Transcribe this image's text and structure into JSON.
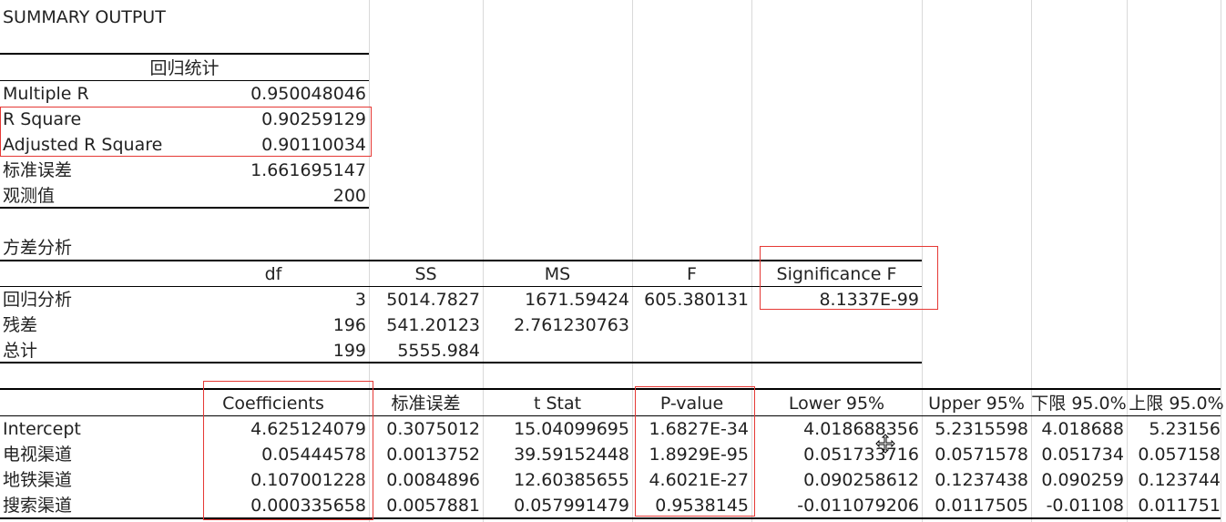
{
  "title": "SUMMARY OUTPUT",
  "regression": {
    "header": "回归统计",
    "rows": [
      {
        "label": "Multiple R",
        "value": "0.950048046"
      },
      {
        "label": "R Square",
        "value": "0.90259129"
      },
      {
        "label": "Adjusted R Square",
        "value": "0.90110034"
      },
      {
        "label": "标准误差",
        "value": "1.661695147"
      },
      {
        "label": "观测值",
        "value": "200"
      }
    ]
  },
  "anova": {
    "title": "方差分析",
    "headers": [
      "df",
      "SS",
      "MS",
      "F",
      "Significance F"
    ],
    "rows": [
      {
        "label": "回归分析",
        "df": "3",
        "ss": "5014.7827",
        "ms": "1671.59424",
        "f": "605.380131",
        "sig": "8.1337E-99"
      },
      {
        "label": "残差",
        "df": "196",
        "ss": "541.20123",
        "ms": "2.761230763",
        "f": "",
        "sig": ""
      },
      {
        "label": "总计",
        "df": "199",
        "ss": "5555.984",
        "ms": "",
        "f": "",
        "sig": ""
      }
    ]
  },
  "coef": {
    "headers": [
      "Coefficients",
      "标准误差",
      "t Stat",
      "P-value",
      "Lower 95%",
      "Upper 95%",
      "下限 95.0%",
      "上限 95.0%"
    ],
    "rows": [
      {
        "label": "Intercept",
        "v": [
          "4.625124079",
          "0.3075012",
          "15.04099695",
          "1.6827E-34",
          "4.018688356",
          "5.2315598",
          "4.018688",
          "5.23156"
        ]
      },
      {
        "label": "电视渠道",
        "v": [
          "0.05444578",
          "0.0013752",
          "39.59152448",
          "1.8929E-95",
          "0.051733716",
          "0.0571578",
          "0.051734",
          "0.057158"
        ]
      },
      {
        "label": "地铁渠道",
        "v": [
          "0.107001228",
          "0.0084896",
          "12.60385655",
          "4.6021E-27",
          "0.090258612",
          "0.1237438",
          "0.090259",
          "0.123744"
        ]
      },
      {
        "label": "搜索渠道",
        "v": [
          "0.000335658",
          "0.0057881",
          "0.057991479",
          "0.9538145",
          "-0.011079206",
          "0.0117505",
          "-0.01108",
          "0.011751"
        ]
      }
    ]
  }
}
